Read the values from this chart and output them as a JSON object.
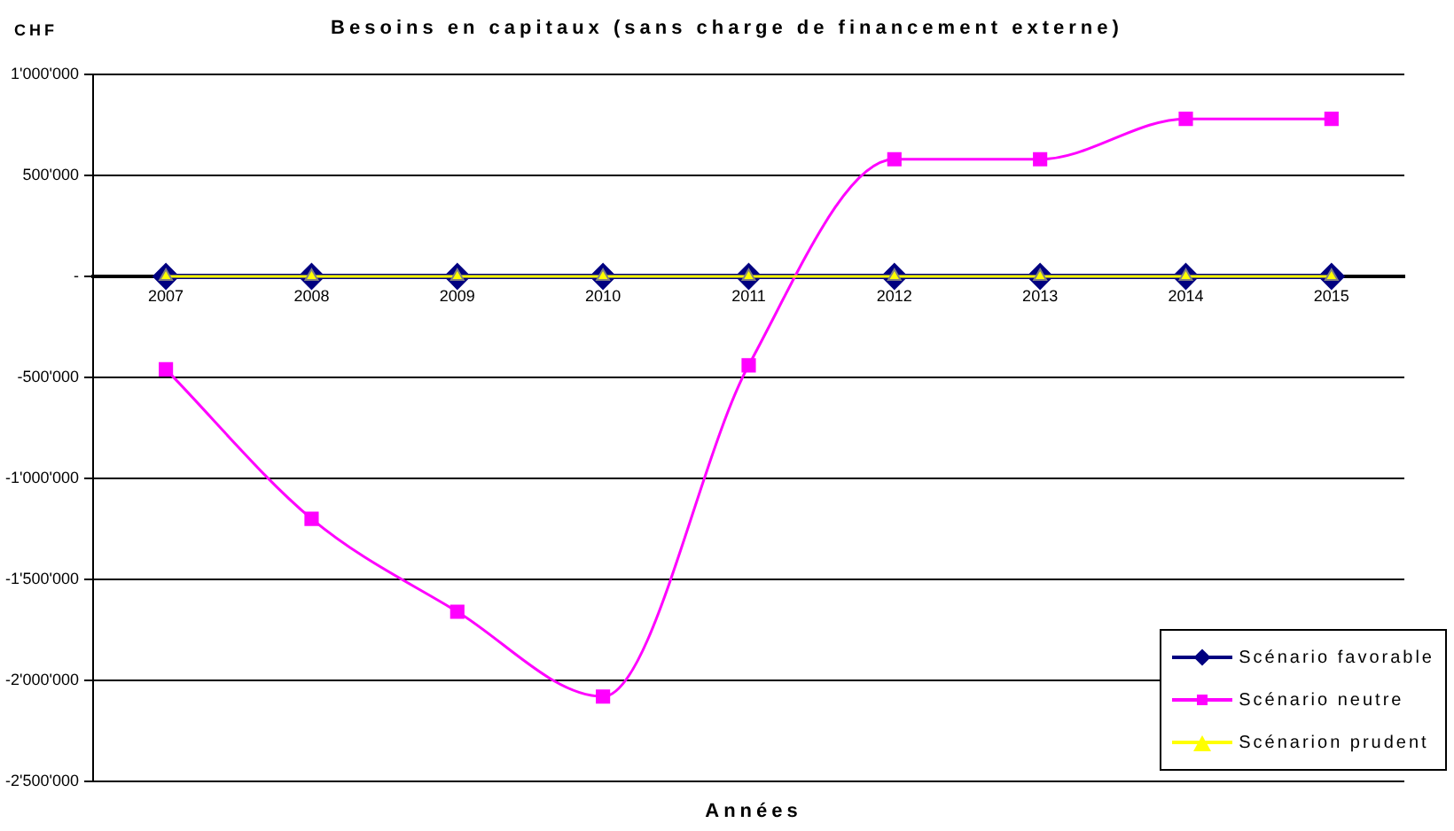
{
  "chart_data": {
    "type": "line",
    "title": "Besoins en capitaux (sans charge de financement externe)",
    "xlabel": "Années",
    "ylabel": "CHF",
    "categories": [
      "2007",
      "2008",
      "2009",
      "2010",
      "2011",
      "2012",
      "2013",
      "2014",
      "2015"
    ],
    "series": [
      {
        "name": "Scénario favorable",
        "color": "#000080",
        "marker": "diamond",
        "values": [
          0,
          0,
          0,
          0,
          0,
          0,
          0,
          0,
          0
        ]
      },
      {
        "name": "Scénario neutre",
        "color": "#ff00ff",
        "marker": "square",
        "values": [
          -460000,
          -1200000,
          -1660000,
          -2080000,
          -440000,
          580000,
          580000,
          780000,
          780000
        ]
      },
      {
        "name": "Scénarion prudent",
        "color": "#ffff00",
        "marker": "triangle",
        "values": [
          0,
          0,
          0,
          0,
          0,
          0,
          0,
          0,
          0
        ]
      }
    ],
    "ylim": [
      -2500000,
      1000000
    ],
    "yticks": [
      {
        "value": -2500000,
        "label": "-2'500'000"
      },
      {
        "value": -2000000,
        "label": "-2'000'000"
      },
      {
        "value": -1500000,
        "label": "-1'500'000"
      },
      {
        "value": -1000000,
        "label": "-1'000'000"
      },
      {
        "value": -500000,
        "label": "-500'000"
      },
      {
        "value": 0,
        "label": "-"
      },
      {
        "value": 500000,
        "label": "500'000"
      },
      {
        "value": 1000000,
        "label": "1'000'000"
      }
    ],
    "grid": "y",
    "legend": "bottom right"
  }
}
